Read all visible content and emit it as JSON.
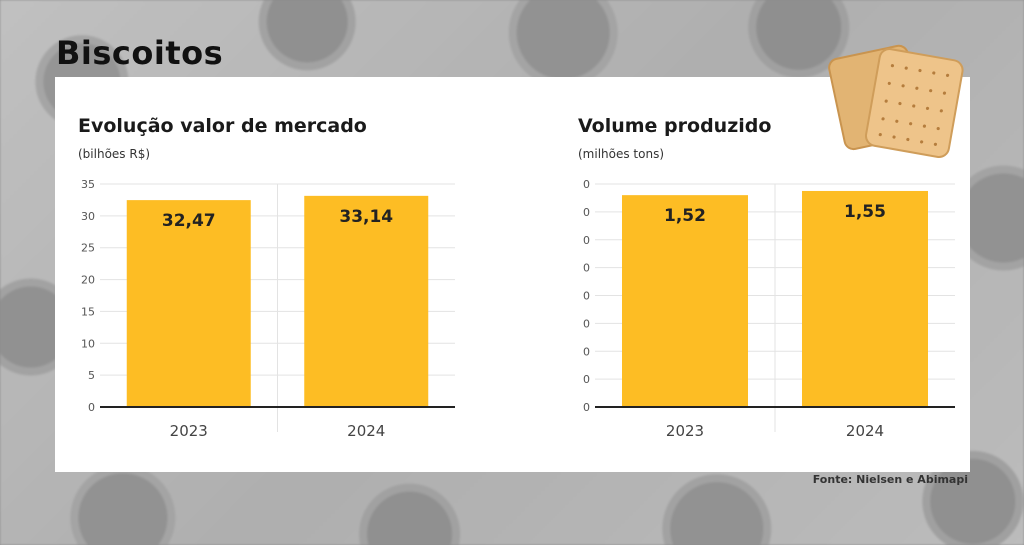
{
  "page": {
    "title": "Biscoitos",
    "source": "Fonte: Nielsen e Abimapi"
  },
  "colors": {
    "bar": "#FDBD24",
    "axis": "#222222",
    "grid": "#e3e3e3"
  },
  "icons": {
    "decor": "biscuit-icon"
  },
  "chart_data": [
    {
      "type": "bar",
      "title": "Evolução valor de mercado",
      "subtitle": "(bilhões R$)",
      "categories": [
        "2023",
        "2024"
      ],
      "values": [
        32.47,
        33.14
      ],
      "value_labels": [
        "32,47",
        "33,14"
      ],
      "yticks": [
        "0",
        "5",
        "10",
        "15",
        "20",
        "25",
        "30",
        "35"
      ],
      "ylim": [
        0,
        35
      ],
      "grid": true
    },
    {
      "type": "bar",
      "title": "Volume produzido",
      "subtitle": "(milhões tons)",
      "categories": [
        "2023",
        "2024"
      ],
      "values": [
        1.52,
        1.55
      ],
      "value_labels": [
        "1,52",
        "1,55"
      ],
      "yticks": [
        "0",
        "0",
        "0",
        "0",
        "0",
        "0",
        "0",
        "0",
        "0"
      ],
      "ylim": [
        0,
        1.6
      ],
      "grid": true
    }
  ]
}
